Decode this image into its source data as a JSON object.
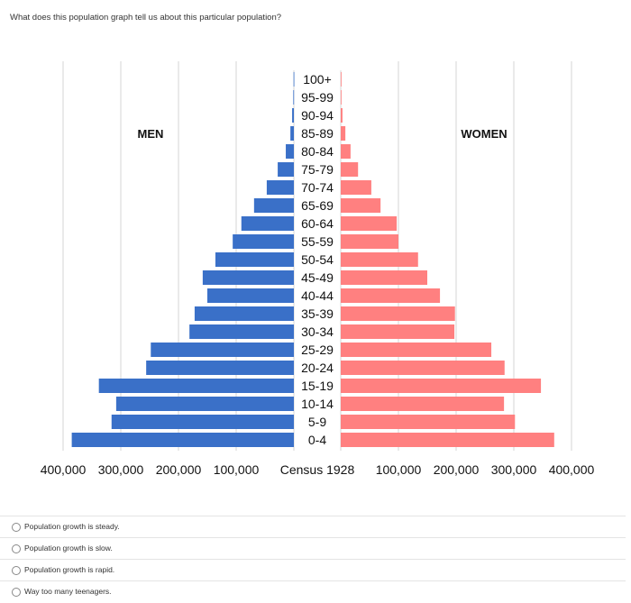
{
  "question": "What does this population graph tell us about this particular population?",
  "chart_data": {
    "type": "bar",
    "subtype": "population-pyramid",
    "title": "",
    "center_label": "Census 1928",
    "categories": [
      "0-4",
      "5-9",
      "10-14",
      "15-19",
      "20-24",
      "25-29",
      "30-34",
      "35-39",
      "40-44",
      "45-49",
      "50-54",
      "55-59",
      "60-64",
      "65-69",
      "70-74",
      "75-79",
      "80-84",
      "85-89",
      "90-94",
      "95-99",
      "100+"
    ],
    "series": [
      {
        "name": "MEN",
        "color": "#3a70c8",
        "values": [
          385000,
          316000,
          308000,
          338000,
          256000,
          248000,
          181000,
          172000,
          150000,
          158000,
          136000,
          106000,
          91000,
          69000,
          47000,
          28000,
          14000,
          6000,
          3000,
          1000,
          500
        ]
      },
      {
        "name": "WOMEN",
        "color": "#ff8080",
        "values": [
          370000,
          302000,
          283000,
          347000,
          284000,
          261000,
          197000,
          198000,
          172000,
          150000,
          134000,
          100000,
          97000,
          69000,
          53000,
          30000,
          17000,
          8000,
          3000,
          1000,
          1000
        ]
      }
    ],
    "xlim": [
      0,
      400000
    ],
    "x_ticks": [
      "400,000",
      "300,000",
      "200,000",
      "100,000"
    ],
    "x_ticks_right": [
      "100,000",
      "200,000",
      "300,000",
      "400,000"
    ],
    "grid": true
  },
  "options": [
    "Population growth is steady.",
    "Population growth is slow.",
    "Population growth is rapid.",
    "Way too many teenagers."
  ]
}
